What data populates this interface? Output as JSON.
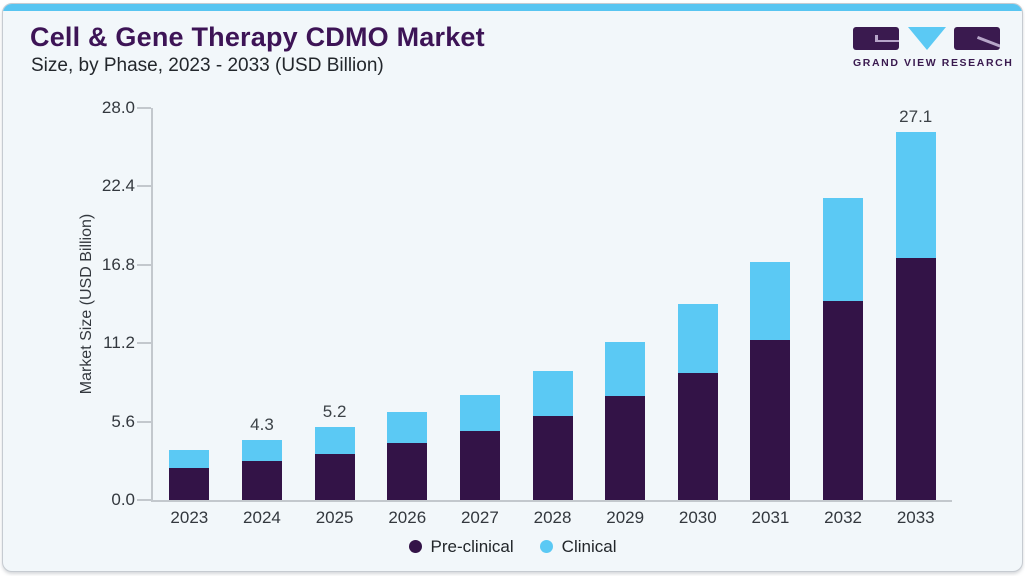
{
  "page": {
    "title": "Cell & Gene Therapy CDMO Market",
    "subtitle": "Size, by Phase, 2023 - 2033 (USD Billion)"
  },
  "logo": {
    "text": "GRAND VIEW RESEARCH",
    "brand_purple": "#3a1a4f",
    "brand_blue": "#5bc9f4"
  },
  "colors": {
    "card_background": "#f2f7fa",
    "top_accent": "#58c5f1",
    "title_text": "#3d1456",
    "axis_line": "#c3c8cd",
    "pre_clinical": "#331347",
    "clinical": "#5bc9f4"
  },
  "chart_data": {
    "type": "bar",
    "stacked": true,
    "title": "Cell & Gene Therapy CDMO Market Size, by Phase, 2023 - 2033 (USD Billion)",
    "categories": [
      "2023",
      "2024",
      "2025",
      "2026",
      "2027",
      "2028",
      "2029",
      "2030",
      "2031",
      "2032",
      "2033"
    ],
    "series": [
      {
        "name": "Pre-clinical",
        "color": "#331347",
        "values": [
          2.3,
          2.8,
          3.3,
          4.1,
          4.9,
          6.0,
          7.4,
          9.1,
          11.4,
          14.2,
          17.8
        ]
      },
      {
        "name": "Clinical",
        "color": "#5bc9f4",
        "values": [
          1.3,
          1.5,
          1.9,
          2.2,
          2.6,
          3.2,
          3.9,
          4.9,
          5.6,
          7.4,
          9.3
        ]
      }
    ],
    "totals": [
      3.6,
      4.3,
      5.2,
      6.3,
      7.5,
      9.2,
      11.3,
      14.0,
      17.0,
      21.6,
      27.1
    ],
    "data_labels_shown": [
      "",
      "4.3",
      "5.2",
      "",
      "",
      "",
      "",
      "",
      "",
      "",
      "27.1"
    ],
    "xlabel": "",
    "ylabel": "Market Size (USD Billion)",
    "ylim": [
      0,
      28
    ],
    "yticks": [
      "0.0",
      "5.6",
      "11.2",
      "16.8",
      "22.4",
      "28.0"
    ],
    "grid": false,
    "legend_position": "bottom"
  }
}
